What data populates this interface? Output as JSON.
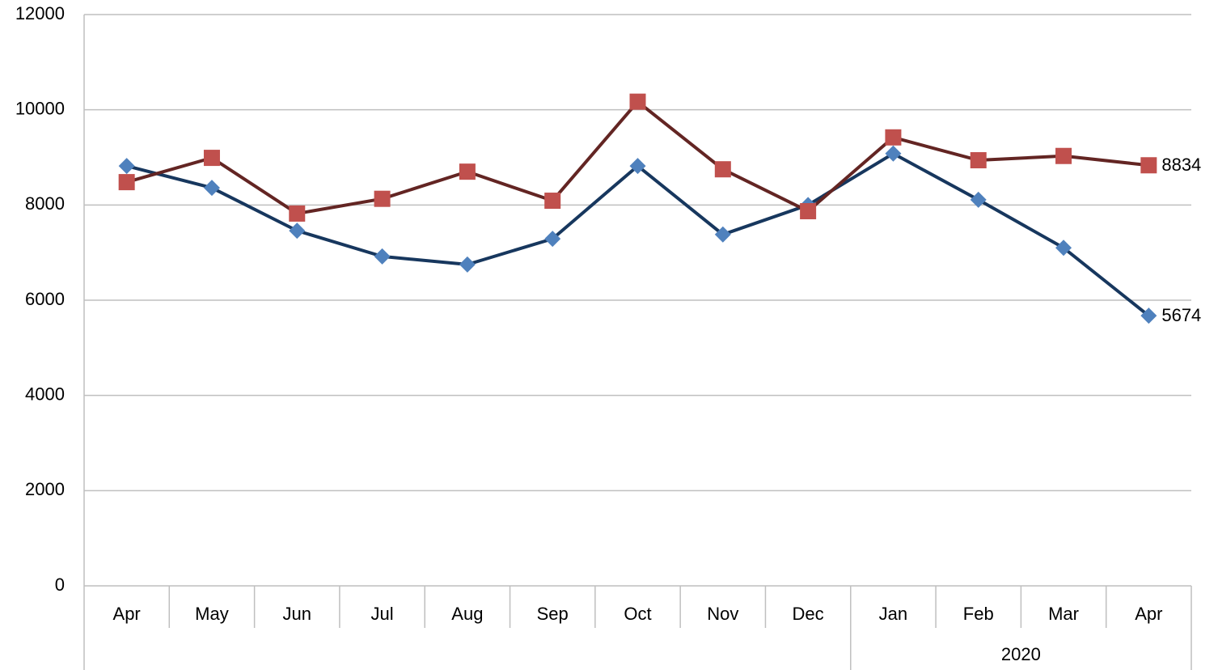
{
  "chart_data": {
    "type": "line",
    "categories": [
      "Apr",
      "May",
      "Jun",
      "Jul",
      "Aug",
      "Sep",
      "Oct",
      "Nov",
      "Dec",
      "Jan",
      "Feb",
      "Mar",
      "Apr"
    ],
    "category_groups": [
      {
        "label": "2020",
        "start": 9,
        "end": 12
      }
    ],
    "series": [
      {
        "color": "#17375e",
        "marker_color": "#4f81bd",
        "marker": "diamond",
        "values": [
          8820,
          8360,
          7460,
          6920,
          6750,
          7290,
          8820,
          7380,
          8000,
          9080,
          8110,
          7100,
          5674
        ]
      },
      {
        "color": "#632523",
        "marker_color": "#c0504d",
        "marker": "square",
        "values": [
          8480,
          8990,
          7820,
          8130,
          8700,
          8090,
          10170,
          8750,
          7870,
          9420,
          8940,
          9030,
          8834
        ]
      }
    ],
    "data_labels": "last",
    "ylim": [
      0,
      12000
    ],
    "yticks": [
      0,
      2000,
      4000,
      6000,
      8000,
      10000,
      12000
    ],
    "grid": true
  }
}
